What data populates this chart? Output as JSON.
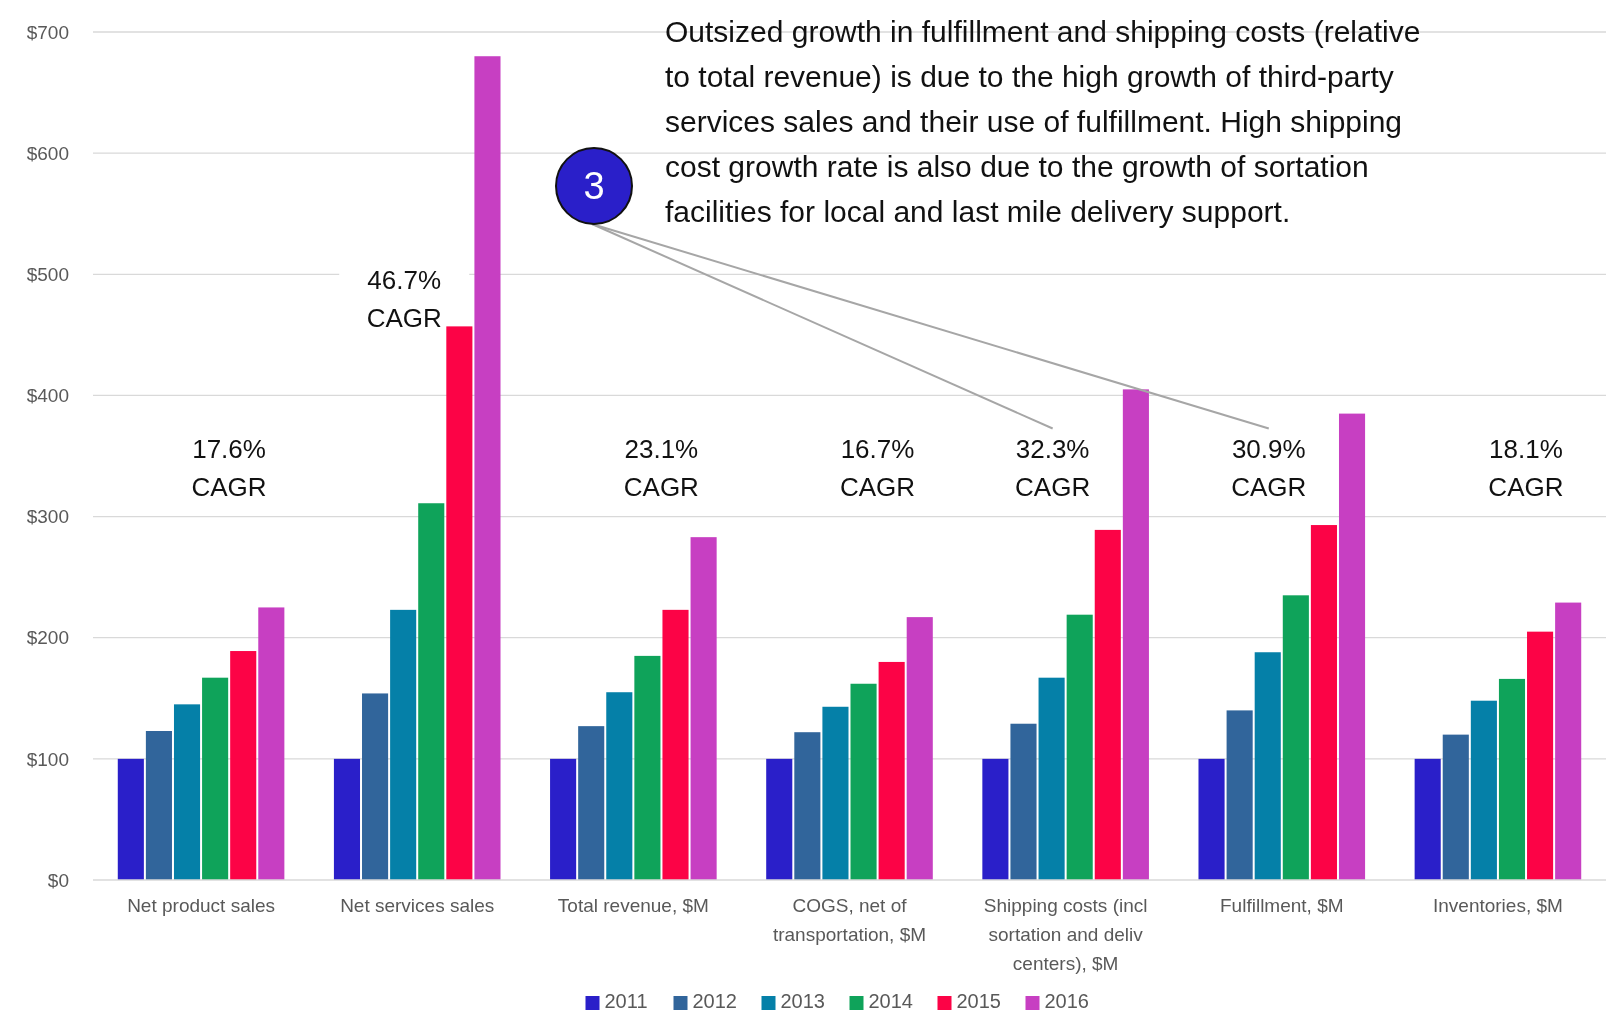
{
  "chart_data": {
    "type": "bar",
    "categories": [
      "Net product sales",
      "Net services sales",
      "Total revenue, $M",
      "COGS, net of transportation, $M",
      "Shipping costs (incl sortation and deliv centers), $M",
      "Fulfillment, $M",
      "Inventories, $M"
    ],
    "series": [
      {
        "name": "2011",
        "color": "#2a1fc9",
        "values": [
          100,
          100,
          100,
          100,
          100,
          100,
          100
        ]
      },
      {
        "name": "2012",
        "color": "#31659b",
        "values": [
          123,
          154,
          127,
          122,
          129,
          140,
          120
        ]
      },
      {
        "name": "2013",
        "color": "#0580a8",
        "values": [
          145,
          223,
          155,
          143,
          167,
          188,
          148
        ]
      },
      {
        "name": "2014",
        "color": "#0fa35a",
        "values": [
          167,
          311,
          185,
          162,
          219,
          235,
          166
        ]
      },
      {
        "name": "2015",
        "color": "#fc0346",
        "values": [
          189,
          457,
          223,
          180,
          289,
          293,
          205
        ]
      },
      {
        "name": "2016",
        "color": "#c73fc2",
        "values": [
          225,
          680,
          283,
          217,
          405,
          385,
          229
        ]
      }
    ],
    "ylim": [
      0,
      700
    ],
    "yticks": [
      {
        "value": 0,
        "label": "$0"
      },
      {
        "value": 100,
        "label": "$100"
      },
      {
        "value": 200,
        "label": "$200"
      },
      {
        "value": 300,
        "label": "$300"
      },
      {
        "value": 400,
        "label": "$400"
      },
      {
        "value": 500,
        "label": "$500"
      },
      {
        "value": 600,
        "label": "$600"
      },
      {
        "value": 700,
        "label": "$700"
      }
    ],
    "grid": "y",
    "legend": "bottom",
    "annotations": [
      "Outsized growth in fulfillment and shipping costs (relative to total revenue) is due to the high growth of third-party services sales and their use of fulfillment. High shipping cost growth rate is also due to the growth of sortation facilities for local and last mile delivery support.",
      "3",
      "17.6% CAGR",
      "46.7% CAGR",
      "23.1% CAGR",
      "16.7% CAGR",
      "32.3% CAGR",
      "30.9% CAGR",
      "18.1% CAGR"
    ]
  }
}
